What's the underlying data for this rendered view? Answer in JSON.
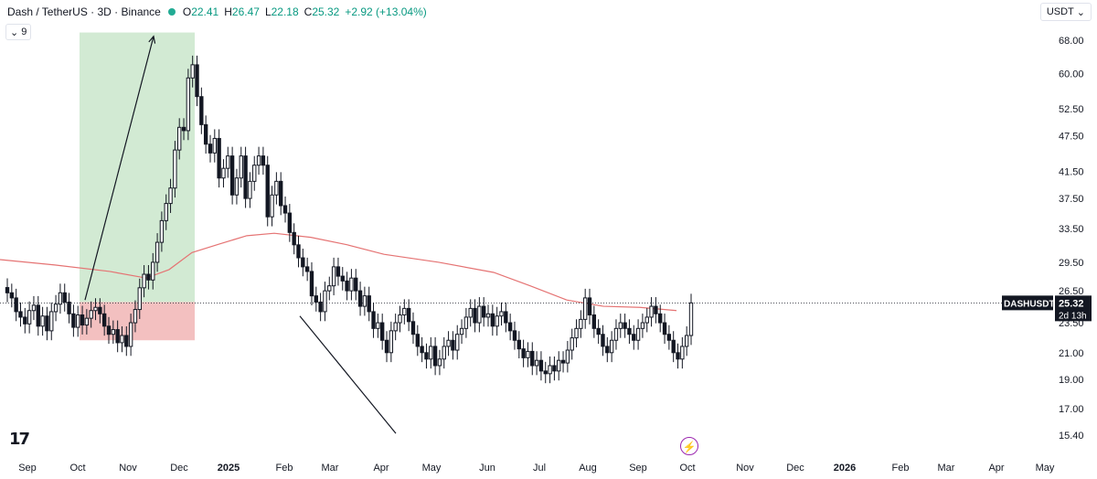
{
  "header": {
    "title": "Dash / TetherUS · 3D · Binance",
    "ohlc": [
      {
        "k": "O",
        "v": "22.41"
      },
      {
        "k": "H",
        "v": "26.47"
      },
      {
        "k": "L",
        "v": "22.18"
      },
      {
        "k": "C",
        "v": "25.32"
      }
    ],
    "change": "+2.92 (+13.04%)",
    "indicator_count": "9",
    "currency": "USDT"
  },
  "price_tag": {
    "symbol": "DASHUSDT",
    "price": "25.32",
    "countdown": "2d 13h"
  },
  "colors": {
    "up": "#ffffff",
    "down": "#131722",
    "ma": "#e57373",
    "target_zone": "#a5d6a7",
    "stop_zone": "#e57373",
    "resistance_band": "#ef9a9a"
  },
  "chart_data": {
    "type": "candlestick",
    "y_scale": "log",
    "y_ticks": [
      "68.00",
      "60.00",
      "52.50",
      "47.50",
      "41.50",
      "37.50",
      "33.50",
      "29.50",
      "26.50",
      "23.50",
      "21.00",
      "19.00",
      "17.00",
      "15.40"
    ],
    "x_ticks": [
      "Sep",
      "Oct",
      "Nov",
      "Dec",
      "2025",
      "Feb",
      "Mar",
      "Apr",
      "May",
      "Jun",
      "Jul",
      "Aug",
      "Sep",
      "Oct",
      "Nov",
      "Dec",
      "2026",
      "Feb",
      "Mar",
      "Apr",
      "May"
    ],
    "last_close": 25.32,
    "annotations": {
      "resistance_band": [
        24.3,
        25.6
      ],
      "target_zone": {
        "from": 25.4,
        "to": 70.0,
        "start": "Oct",
        "end": "Dec"
      },
      "stop_zone": {
        "from": 22.0,
        "to": 25.4
      },
      "trendline": {
        "from_price": 15.5,
        "to_price": 24.1,
        "start": "Apr",
        "end": "Feb"
      },
      "arrow": {
        "from_price": 25.6,
        "to_price": 69.0,
        "start": "Oct",
        "end": "Nov"
      }
    },
    "candles_close": [
      26.3,
      25.8,
      24.5,
      24.0,
      23.4,
      24.6,
      25.1,
      23.2,
      24.1,
      22.8,
      24.5,
      25.2,
      26.3,
      25.4,
      24.3,
      23.1,
      24.2,
      23.3,
      23.9,
      24.6,
      24.9,
      24.3,
      23.2,
      22.5,
      22.9,
      21.8,
      22.4,
      21.5,
      23.5,
      24.7,
      26.8,
      28.2,
      27.6,
      29.5,
      31.8,
      34.5,
      36.8,
      39.0,
      45.0,
      49.0,
      48.4,
      59.0,
      62.0,
      55.0,
      49.5,
      46.0,
      44.5,
      47.0,
      40.5,
      42.0,
      44.0,
      38.0,
      40.5,
      44.0,
      37.5,
      40.0,
      42.5,
      44.0,
      42.5,
      35.0,
      38.0,
      40.0,
      36.5,
      35.5,
      33.0,
      31.5,
      30.0,
      29.0,
      28.5,
      26.0,
      25.4,
      24.5,
      26.5,
      27.0,
      29.0,
      28.0,
      27.5,
      26.5,
      27.8,
      26.5,
      25.0,
      26.0,
      24.5,
      23.0,
      23.5,
      22.0,
      21.0,
      22.8,
      23.5,
      24.2,
      24.8,
      23.6,
      22.5,
      21.5,
      21.0,
      20.5,
      21.5,
      20.0,
      20.5,
      21.5,
      22.0,
      21.2,
      22.5,
      23.0,
      24.0,
      24.8,
      23.5,
      25.0,
      24.0,
      24.3,
      23.2,
      24.1,
      24.5,
      23.5,
      22.8,
      22.0,
      21.3,
      20.6,
      21.1,
      20.0,
      20.4,
      19.6,
      19.4,
      20.0,
      19.6,
      20.4,
      20.2,
      21.2,
      22.2,
      23.0,
      23.8,
      25.8,
      24.2,
      23.0,
      22.5,
      21.5,
      21.0,
      22.0,
      23.0,
      23.5,
      23.0,
      22.5,
      22.0,
      23.0,
      23.5,
      24.0,
      25.0,
      24.3,
      23.5,
      22.5,
      22.0,
      21.0,
      20.5,
      21.5,
      22.4,
      25.32
    ]
  }
}
